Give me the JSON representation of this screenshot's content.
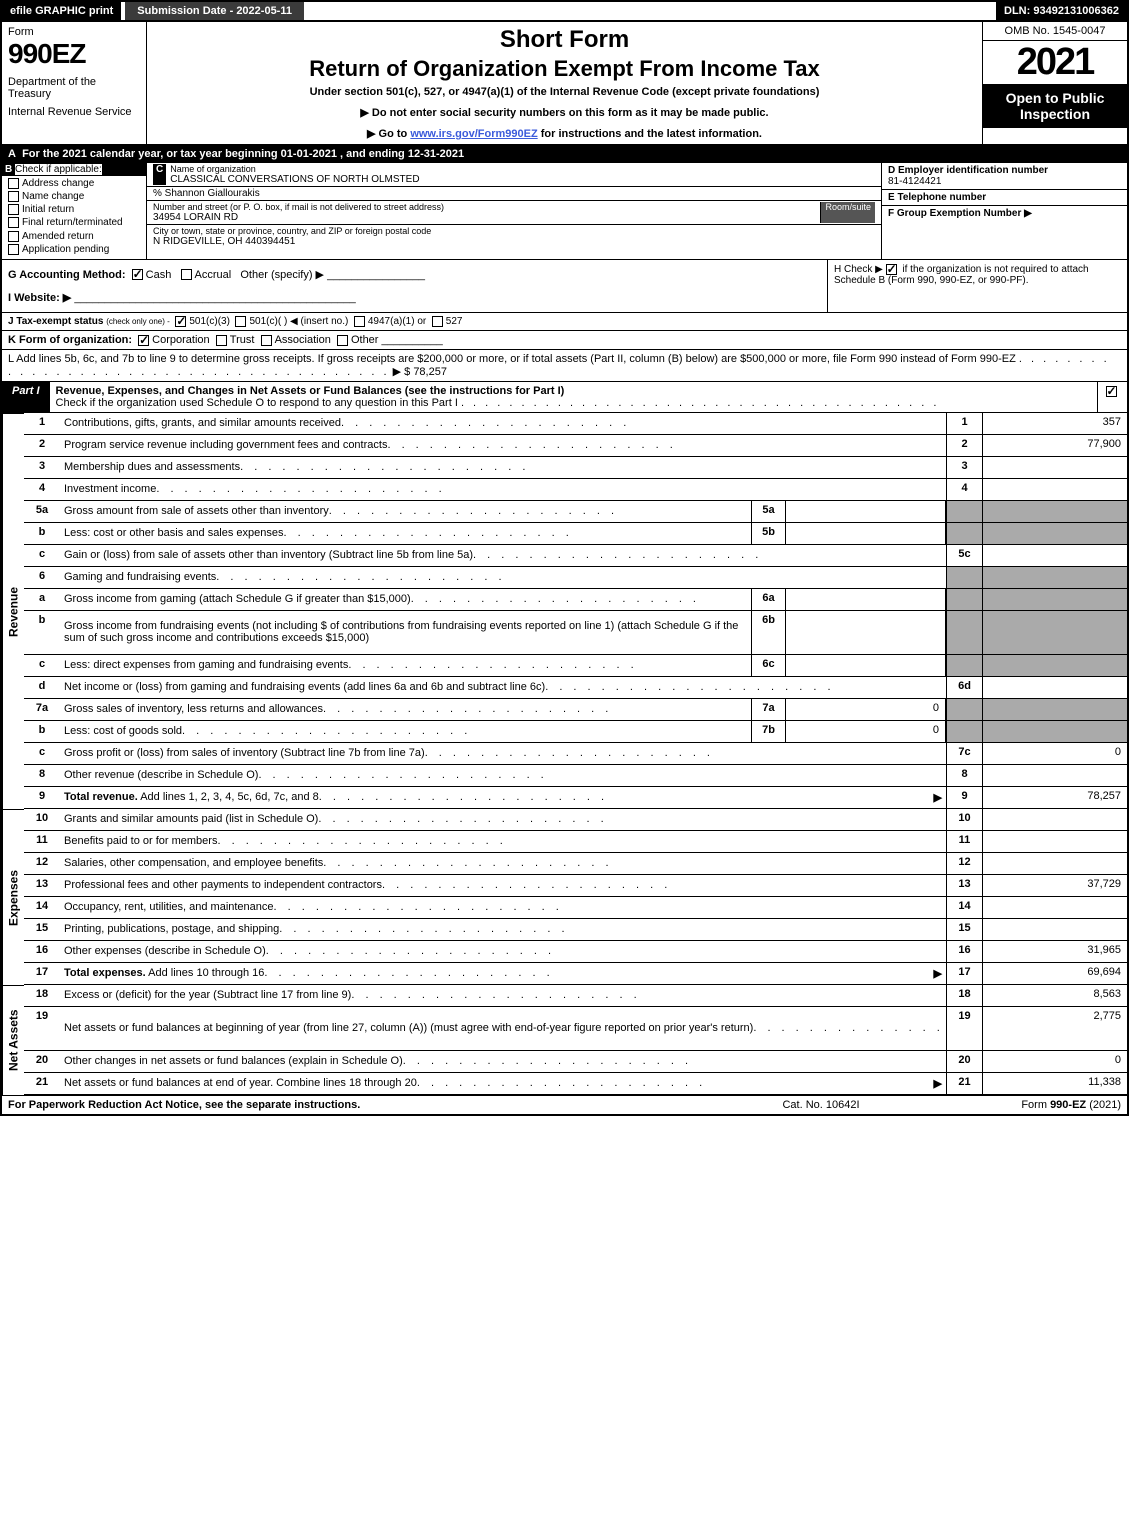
{
  "topbar": {
    "efile": "efile GRAPHIC print",
    "submission": "Submission Date - 2022-05-11",
    "dln": "DLN: 93492131006362"
  },
  "header": {
    "form_label": "Form",
    "form_number": "990EZ",
    "dept1": "Department of the Treasury",
    "dept2": "Internal Revenue Service",
    "short_form": "Short Form",
    "title": "Return of Organization Exempt From Income Tax",
    "subtitle": "Under section 501(c), 527, or 4947(a)(1) of the Internal Revenue Code (except private foundations)",
    "note1": "▶ Do not enter social security numbers on this form as it may be made public.",
    "note2_pre": "▶ Go to ",
    "note2_link": "www.irs.gov/Form990EZ",
    "note2_post": " for instructions and the latest information.",
    "omb": "OMB No. 1545-0047",
    "year": "2021",
    "open": "Open to Public Inspection"
  },
  "row_a": {
    "label": "A",
    "text": "For the 2021 calendar year, or tax year beginning 01-01-2021 , and ending 12-31-2021"
  },
  "col_b": {
    "header": "B",
    "title": "Check if applicable:",
    "opts": [
      "Address change",
      "Name change",
      "Initial return",
      "Final return/terminated",
      "Amended return",
      "Application pending"
    ]
  },
  "col_c": {
    "c_label": "C",
    "c_title": "Name of organization",
    "org_name": "CLASSICAL CONVERSATIONS OF NORTH OLMSTED",
    "care_of": "% Shannon Giallourakis",
    "street_label": "Number and street (or P. O. box, if mail is not delivered to street address)",
    "room_label": "Room/suite",
    "street": "34954 LORAIN RD",
    "city_label": "City or town, state or province, country, and ZIP or foreign postal code",
    "city": "N RIDGEVILLE, OH  440394451"
  },
  "col_de": {
    "d_label": "D Employer identification number",
    "ein": "81-4124421",
    "e_label": "E Telephone number",
    "phone": "",
    "f_label": "F Group Exemption Number  ▶",
    "f_val": ""
  },
  "row_g": {
    "label": "G Accounting Method:",
    "cash": "Cash",
    "accrual": "Accrual",
    "other": "Other (specify) ▶"
  },
  "row_h": {
    "text1": "H  Check ▶",
    "text2": "if the organization is not required to attach Schedule B (Form 990, 990-EZ, or 990-PF)."
  },
  "row_i": {
    "label": "I Website: ▶",
    "val": ""
  },
  "row_j": {
    "label": "J Tax-exempt status",
    "sub": "(check only one) -",
    "o1": "501(c)(3)",
    "o2": "501(c)(  ) ◀ (insert no.)",
    "o3": "4947(a)(1) or",
    "o4": "527"
  },
  "row_k": {
    "label": "K Form of organization:",
    "o1": "Corporation",
    "o2": "Trust",
    "o3": "Association",
    "o4": "Other"
  },
  "row_l": {
    "text": "L Add lines 5b, 6c, and 7b to line 9 to determine gross receipts. If gross receipts are $200,000 or more, or if total assets (Part II, column (B) below) are $500,000 or more, file Form 990 instead of Form 990-EZ",
    "arrow": "▶ $",
    "amount": "78,257"
  },
  "part1": {
    "badge": "Part I",
    "title": "Revenue, Expenses, and Changes in Net Assets or Fund Balances (see the instructions for Part I)",
    "check_text": "Check if the organization used Schedule O to respond to any question in this Part I"
  },
  "sections": {
    "revenue_label": "Revenue",
    "expenses_label": "Expenses",
    "netassets_label": "Net Assets"
  },
  "lines": [
    {
      "n": "1",
      "d": "Contributions, gifts, grants, and similar amounts received",
      "ref": "1",
      "amt": "357"
    },
    {
      "n": "2",
      "d": "Program service revenue including government fees and contracts",
      "ref": "2",
      "amt": "77,900"
    },
    {
      "n": "3",
      "d": "Membership dues and assessments",
      "ref": "3",
      "amt": ""
    },
    {
      "n": "4",
      "d": "Investment income",
      "ref": "4",
      "amt": ""
    },
    {
      "n": "5a",
      "d": "Gross amount from sale of assets other than inventory",
      "in": "5a",
      "iv": "",
      "shaded": true
    },
    {
      "n": "b",
      "d": "Less: cost or other basis and sales expenses",
      "in": "5b",
      "iv": "",
      "shaded": true
    },
    {
      "n": "c",
      "d": "Gain or (loss) from sale of assets other than inventory (Subtract line 5b from line 5a)",
      "ref": "5c",
      "amt": ""
    },
    {
      "n": "6",
      "d": "Gaming and fundraising events",
      "shaded": true
    },
    {
      "n": "a",
      "d": "Gross income from gaming (attach Schedule G if greater than $15,000)",
      "in": "6a",
      "iv": "",
      "shaded": true
    },
    {
      "n": "b",
      "d": "Gross income from fundraising events (not including $                          of contributions from fundraising events reported on line 1) (attach Schedule G if the sum of such gross income and contributions exceeds $15,000)",
      "in": "6b",
      "iv": "",
      "shaded": true,
      "tall": true
    },
    {
      "n": "c",
      "d": "Less: direct expenses from gaming and fundraising events",
      "in": "6c",
      "iv": "",
      "shaded": true
    },
    {
      "n": "d",
      "d": "Net income or (loss) from gaming and fundraising events (add lines 6a and 6b and subtract line 6c)",
      "ref": "6d",
      "amt": ""
    },
    {
      "n": "7a",
      "d": "Gross sales of inventory, less returns and allowances",
      "in": "7a",
      "iv": "0",
      "shaded": true
    },
    {
      "n": "b",
      "d": "Less: cost of goods sold",
      "in": "7b",
      "iv": "0",
      "shaded": true
    },
    {
      "n": "c",
      "d": "Gross profit or (loss) from sales of inventory (Subtract line 7b from line 7a)",
      "ref": "7c",
      "amt": "0"
    },
    {
      "n": "8",
      "d": "Other revenue (describe in Schedule O)",
      "ref": "8",
      "amt": ""
    },
    {
      "n": "9",
      "d": "Total revenue. Add lines 1, 2, 3, 4, 5c, 6d, 7c, and 8",
      "ref": "9",
      "amt": "78,257",
      "bold": true,
      "arrow": true
    }
  ],
  "expense_lines": [
    {
      "n": "10",
      "d": "Grants and similar amounts paid (list in Schedule O)",
      "ref": "10",
      "amt": ""
    },
    {
      "n": "11",
      "d": "Benefits paid to or for members",
      "ref": "11",
      "amt": ""
    },
    {
      "n": "12",
      "d": "Salaries, other compensation, and employee benefits",
      "ref": "12",
      "amt": ""
    },
    {
      "n": "13",
      "d": "Professional fees and other payments to independent contractors",
      "ref": "13",
      "amt": "37,729"
    },
    {
      "n": "14",
      "d": "Occupancy, rent, utilities, and maintenance",
      "ref": "14",
      "amt": ""
    },
    {
      "n": "15",
      "d": "Printing, publications, postage, and shipping",
      "ref": "15",
      "amt": ""
    },
    {
      "n": "16",
      "d": "Other expenses (describe in Schedule O)",
      "ref": "16",
      "amt": "31,965"
    },
    {
      "n": "17",
      "d": "Total expenses. Add lines 10 through 16",
      "ref": "17",
      "amt": "69,694",
      "bold": true,
      "arrow": true
    }
  ],
  "netasset_lines": [
    {
      "n": "18",
      "d": "Excess or (deficit) for the year (Subtract line 17 from line 9)",
      "ref": "18",
      "amt": "8,563"
    },
    {
      "n": "19",
      "d": "Net assets or fund balances at beginning of year (from line 27, column (A)) (must agree with end-of-year figure reported on prior year's return)",
      "ref": "19",
      "amt": "2,775",
      "tall": true
    },
    {
      "n": "20",
      "d": "Other changes in net assets or fund balances (explain in Schedule O)",
      "ref": "20",
      "amt": "0"
    },
    {
      "n": "21",
      "d": "Net assets or fund balances at end of year. Combine lines 18 through 20",
      "ref": "21",
      "amt": "11,338",
      "arrow": true
    }
  ],
  "footer": {
    "left": "For Paperwork Reduction Act Notice, see the separate instructions.",
    "mid": "Cat. No. 10642I",
    "right_pre": "Form ",
    "right_form": "990-EZ",
    "right_post": " (2021)"
  },
  "dots": ". . . . . . . . . . . . . . . . . . . . . . . . . . . . . . . . . . . . . . . ."
}
